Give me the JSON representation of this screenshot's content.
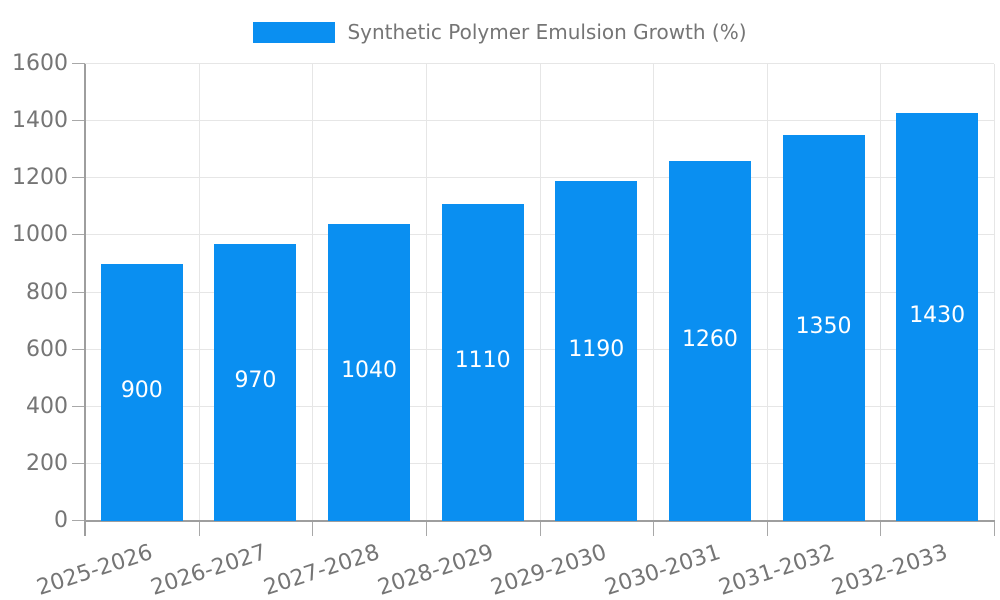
{
  "legend": {
    "label": "Synthetic Polymer Emulsion Growth (%)"
  },
  "colors": {
    "bar": "#0a8ff1",
    "grid": "#e6e6e6",
    "axis": "#9e9e9e",
    "tick": "#a8a8a8",
    "text": "#757575",
    "bar_label": "#ffffff",
    "background": "#ffffff"
  },
  "chart_data": {
    "type": "bar",
    "title": "Synthetic Polymer Emulsion Growth (%)",
    "categories": [
      "2025-2026",
      "2026-2027",
      "2027-2028",
      "2028-2029",
      "2029-2030",
      "2030-2031",
      "2031-2032",
      "2032-2033"
    ],
    "values": [
      900,
      970,
      1040,
      1110,
      1190,
      1260,
      1350,
      1430
    ],
    "xlabel": "",
    "ylabel": "",
    "ylim": [
      0,
      1600
    ],
    "yticks": [
      0,
      200,
      400,
      600,
      800,
      1000,
      1200,
      1400,
      1600
    ],
    "grid": true,
    "legend_position": "top",
    "bar_labels_inside": true,
    "x_label_rotation_deg": -18
  }
}
